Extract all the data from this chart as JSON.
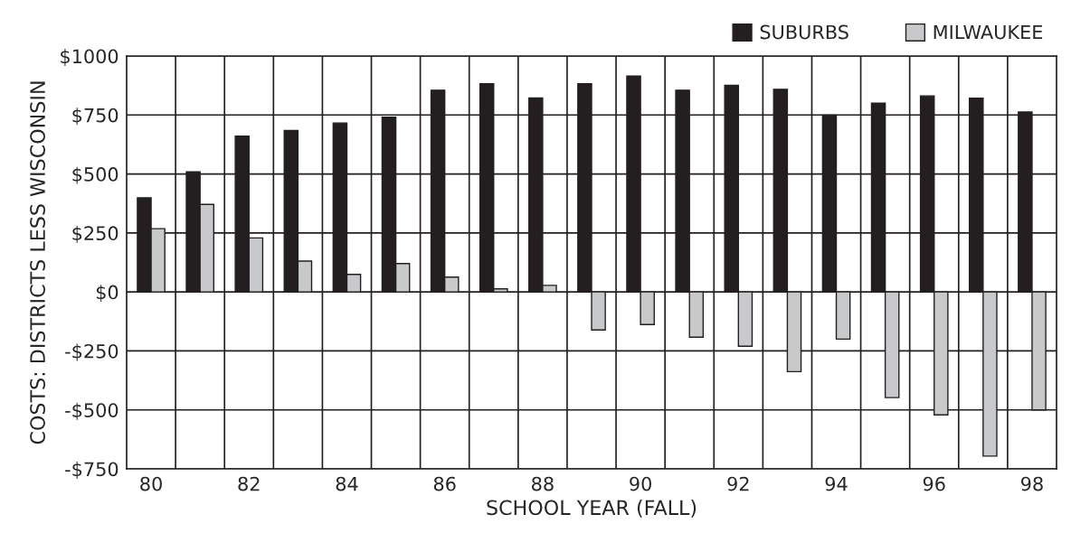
{
  "chart_data": {
    "type": "bar",
    "xlabel": "SCHOOL YEAR (FALL)",
    "ylabel": "COSTS: DISTRICTS LESS WISCONSIN",
    "categories": [
      "80",
      null,
      "82",
      null,
      "84",
      null,
      "86",
      null,
      "88",
      null,
      "90",
      null,
      "92",
      null,
      "94",
      null,
      "96",
      null,
      "98"
    ],
    "series": [
      {
        "name": "SUBURBS",
        "color": "#231f20",
        "values": [
          399,
          509,
          660,
          684,
          716,
          741,
          855,
          882,
          822,
          882,
          915,
          855,
          876,
          859,
          749,
          800,
          831,
          821,
          763
        ]
      },
      {
        "name": "MILWAUKEE",
        "color": "#c8c9cb",
        "values": [
          268,
          371,
          229,
          131,
          74,
          120,
          63,
          13,
          28,
          -161,
          -138,
          -192,
          -230,
          -338,
          -200,
          -448,
          -521,
          -696,
          -500
        ]
      }
    ],
    "ylim": [
      -750,
      1000
    ],
    "yticks": [
      {
        "value": -750,
        "label": "-$750"
      },
      {
        "value": -500,
        "label": "-$500"
      },
      {
        "value": -250,
        "label": "-$250"
      },
      {
        "value": 0,
        "label": "$0"
      },
      {
        "value": 250,
        "label": "$250"
      },
      {
        "value": 500,
        "label": "$500"
      },
      {
        "value": 750,
        "label": "$750"
      },
      {
        "value": 1000,
        "label": "$1000"
      }
    ],
    "grid": true,
    "legend": "top right"
  }
}
